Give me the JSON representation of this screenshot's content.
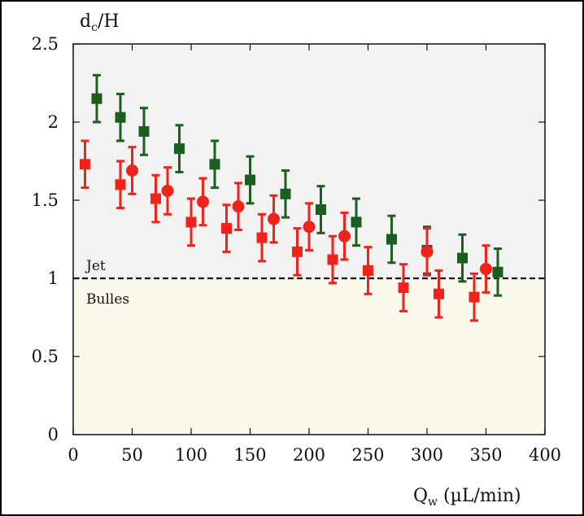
{
  "chart_data": {
    "type": "scatter",
    "ylabel": "d",
    "ylabel_sub": "c",
    "ylabel_suffix": "/H",
    "xlabel": "Q",
    "xlabel_sub": "w",
    "xlabel_suffix": " (µL/min)",
    "xlim": [
      0,
      400
    ],
    "ylim": [
      0,
      2.5
    ],
    "xticks": [
      "0",
      "50",
      "100",
      "150",
      "200",
      "250",
      "300",
      "350",
      "400"
    ],
    "yticks": [
      "0",
      "0.5",
      "1",
      "1.5",
      "2",
      "2.5"
    ],
    "grid": false,
    "threshold": 1,
    "regions": {
      "above_label": "Jet",
      "below_label": "Bulles",
      "above_color": "#f2f2f2",
      "below_color": "#fcf8ec"
    },
    "series": [
      {
        "marker": "square",
        "color": "#1b5e20",
        "x": [
          20,
          40,
          60,
          90,
          120,
          150,
          180,
          210,
          240,
          270,
          300,
          330,
          360
        ],
        "y": [
          2.15,
          2.03,
          1.94,
          1.83,
          1.73,
          1.63,
          1.54,
          1.44,
          1.36,
          1.25,
          1.18,
          1.13,
          1.04
        ],
        "err": [
          0.15,
          0.15,
          0.15,
          0.15,
          0.15,
          0.15,
          0.15,
          0.15,
          0.15,
          0.15,
          0.15,
          0.15,
          0.15
        ]
      },
      {
        "marker": "square",
        "color": "#f0231c",
        "x": [
          10,
          40,
          70,
          100,
          130,
          160,
          190,
          220,
          250,
          280,
          310,
          340
        ],
        "y": [
          1.73,
          1.6,
          1.51,
          1.36,
          1.32,
          1.26,
          1.17,
          1.12,
          1.05,
          0.94,
          0.9,
          0.88
        ],
        "err": [
          0.15,
          0.15,
          0.15,
          0.15,
          0.15,
          0.15,
          0.15,
          0.15,
          0.15,
          0.15,
          0.15,
          0.15
        ]
      },
      {
        "marker": "circle",
        "color": "#f0231c",
        "x": [
          50,
          80,
          110,
          140,
          170,
          200,
          230,
          300,
          350
        ],
        "y": [
          1.69,
          1.56,
          1.49,
          1.46,
          1.38,
          1.33,
          1.27,
          1.17,
          1.06
        ],
        "err": [
          0.15,
          0.15,
          0.15,
          0.15,
          0.15,
          0.15,
          0.15,
          0.15,
          0.15
        ]
      }
    ]
  }
}
